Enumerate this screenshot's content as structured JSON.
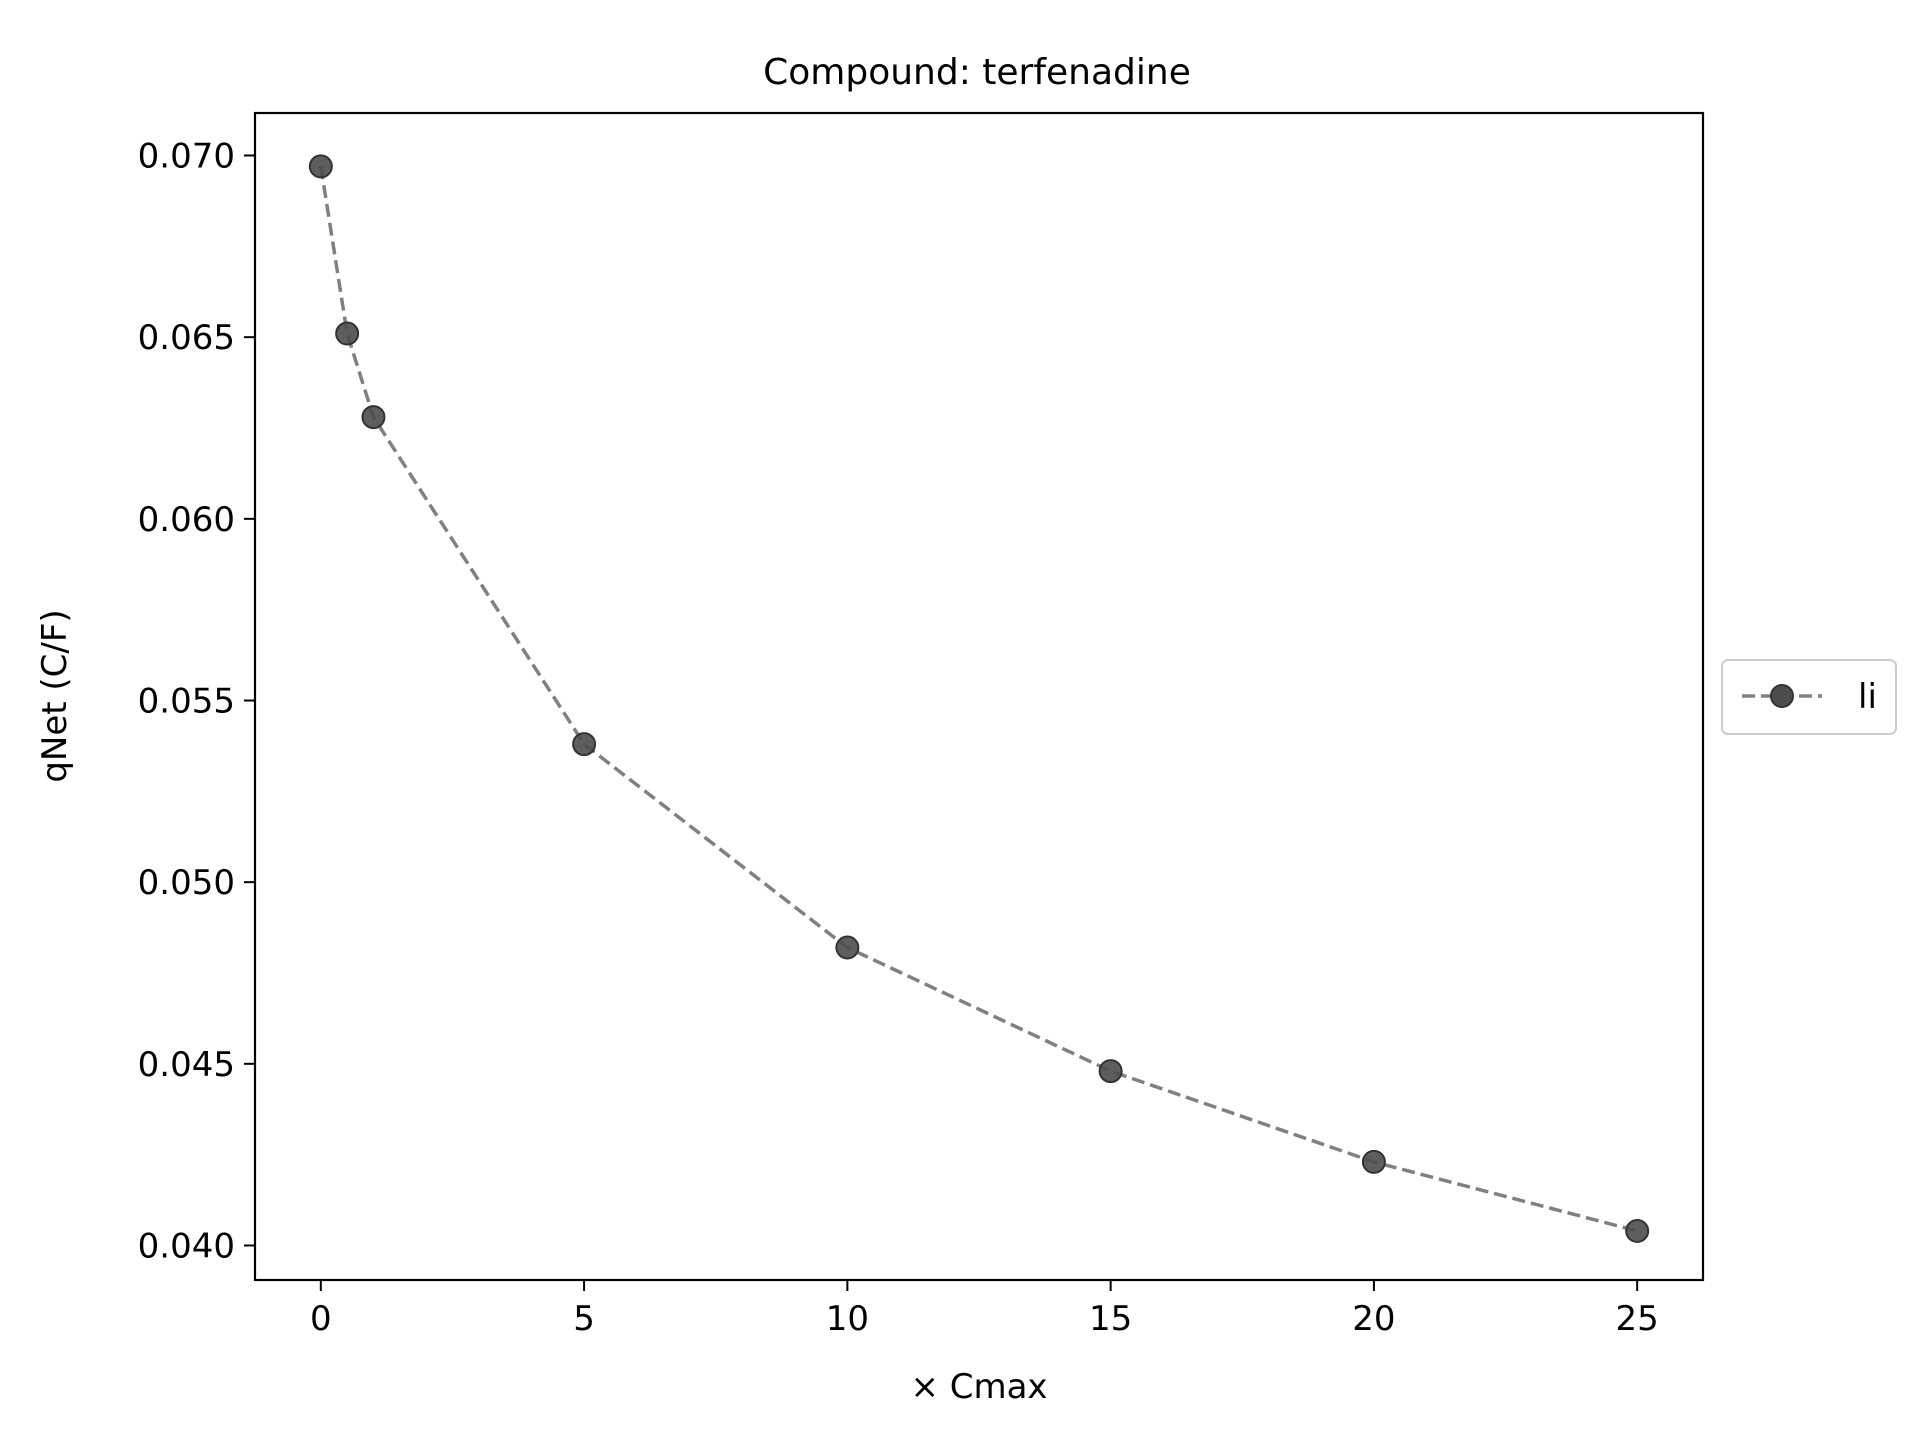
{
  "chart_data": {
    "type": "line",
    "title": "Compound: terfenadine",
    "xlabel": "× Cmax",
    "ylabel": "qNet (C/F)",
    "xlim": [
      -1.25,
      26.25
    ],
    "ylim": [
      0.03905,
      0.07117
    ],
    "xticks": [
      0,
      5,
      10,
      15,
      20,
      25
    ],
    "yticks": [
      0.04,
      0.045,
      0.05,
      0.055,
      0.06,
      0.065,
      0.07
    ],
    "xtick_labels": [
      "0",
      "5",
      "10",
      "15",
      "20",
      "25"
    ],
    "ytick_labels": [
      "0.040",
      "0.045",
      "0.050",
      "0.055",
      "0.060",
      "0.065",
      "0.070"
    ],
    "grid": false,
    "legend_position": "center-right-outside",
    "series": [
      {
        "name": "li",
        "color": "#808080",
        "marker_color": "#4d4d4d",
        "line_style": "dashed",
        "marker": "circle",
        "x": [
          0,
          0.5,
          1,
          5,
          10,
          15,
          20,
          25
        ],
        "y": [
          0.0697,
          0.0651,
          0.0628,
          0.0538,
          0.0482,
          0.0448,
          0.0423,
          0.0404
        ]
      }
    ]
  }
}
